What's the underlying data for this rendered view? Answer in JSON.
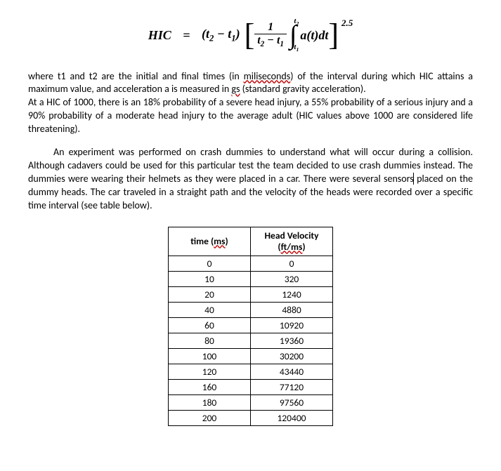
{
  "equation": {
    "lhs": "HIC",
    "eq": "=",
    "factor_open": "(t",
    "factor_sub2": "2",
    "factor_minus": " − t",
    "factor_sub1": "1",
    "factor_close": ")",
    "frac_num": "1",
    "frac_den_a": "t",
    "frac_den_s2": "2",
    "frac_den_m": " − t",
    "frac_den_s1": "1",
    "int_upper_a": "t",
    "int_upper_s": "2",
    "int_lower_a": "t",
    "int_lower_s": "1",
    "integrand": "a(t)dt",
    "exponent": "2.5"
  },
  "para1": {
    "a": "where t1 and t2 are the initial and final times (in ",
    "wavy1": "miliseconds",
    "b": ") of the interval during which HIC attains a maximum value, and acceleration a is measured in ",
    "wavy2": "gs",
    "c": " (standard gravity acceleration).",
    "d": "At a HIC of 1000, there is an 18% probability of a severe head injury, a 55% probability of a serious injury and a 90% probability of a moderate head injury to the average adult (HIC values above 1000 are considered life threatening)."
  },
  "para2": {
    "a": "An experiment was performed on crash dummies to understand what will occur during a collision. Although cadavers could be used for this particular test the team decided to use crash dummies instead. The dummies were wearing their helmets as they were placed in a car. There were several sensors",
    "b": " placed on the dummy heads. The car traveled in a straight path and the velocity of the heads were recorded over a specific time interval (see table below)."
  },
  "table": {
    "headers": {
      "col1_a": "time (",
      "col1_w": "ms",
      "col1_b": ")",
      "col2_a": "Head Velocity",
      "col2_b": "(",
      "col2_w": "ft/ms",
      "col2_c": ")"
    },
    "rows": [
      {
        "t": "0",
        "v": "0"
      },
      {
        "t": "10",
        "v": "320"
      },
      {
        "t": "20",
        "v": "1240"
      },
      {
        "t": "40",
        "v": "4880"
      },
      {
        "t": "60",
        "v": "10920"
      },
      {
        "t": "80",
        "v": "19360"
      },
      {
        "t": "100",
        "v": "30200"
      },
      {
        "t": "120",
        "v": "43440"
      },
      {
        "t": "160",
        "v": "77120"
      },
      {
        "t": "180",
        "v": "97560"
      },
      {
        "t": "200",
        "v": "120400"
      }
    ]
  }
}
